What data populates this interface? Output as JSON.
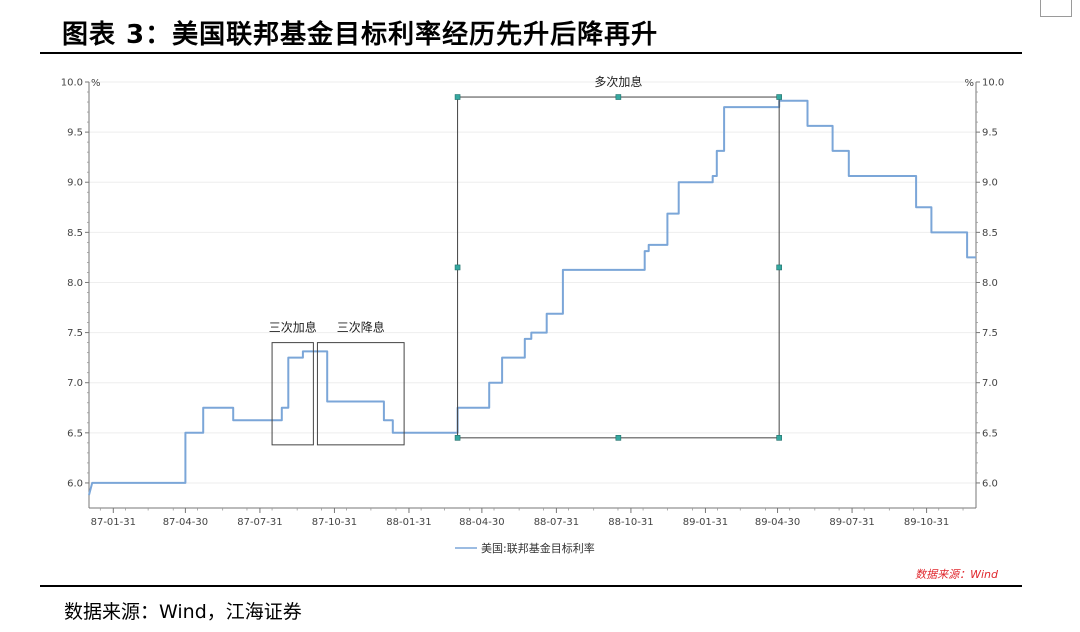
{
  "title": "图表 3：美国联邦基金目标利率经历先升后降再升",
  "source_footer": "数据来源：Wind，江海证券",
  "chart_data": {
    "type": "line",
    "ylabel_left": "%",
    "ylabel_right": "%",
    "ylim": [
      5.75,
      10.0
    ],
    "yticks": [
      "6.0",
      "6.5",
      "7.0",
      "7.5",
      "8.0",
      "8.5",
      "9.0",
      "9.5",
      "10.0"
    ],
    "xlim": [
      "1987-01-01",
      "1989-12-31"
    ],
    "xticks": [
      {
        "date": "1987-01-31",
        "label": "87-01-31"
      },
      {
        "date": "1987-04-30",
        "label": "87-04-30"
      },
      {
        "date": "1987-07-31",
        "label": "87-07-31"
      },
      {
        "date": "1987-10-31",
        "label": "87-10-31"
      },
      {
        "date": "1988-01-31",
        "label": "88-01-31"
      },
      {
        "date": "1988-04-30",
        "label": "88-04-30"
      },
      {
        "date": "1988-07-31",
        "label": "88-07-31"
      },
      {
        "date": "1988-10-31",
        "label": "88-10-31"
      },
      {
        "date": "1989-01-31",
        "label": "89-01-31"
      },
      {
        "date": "1989-04-30",
        "label": "89-04-30"
      },
      {
        "date": "1989-07-31",
        "label": "89-07-31"
      },
      {
        "date": "1989-10-31",
        "label": "89-10-31"
      }
    ],
    "series": [
      {
        "name": "美国:联邦基金目标利率",
        "color": "#7ba6d8",
        "points": [
          [
            "1987-01-01",
            5.88
          ],
          [
            "1987-01-05",
            6.0
          ],
          [
            "1987-04-30",
            6.0
          ],
          [
            "1987-04-30",
            6.5
          ],
          [
            "1987-05-22",
            6.5
          ],
          [
            "1987-05-22",
            6.75
          ],
          [
            "1987-06-28",
            6.75
          ],
          [
            "1987-06-28",
            6.625
          ],
          [
            "1987-08-27",
            6.625
          ],
          [
            "1987-08-27",
            6.75
          ],
          [
            "1987-09-04",
            6.75
          ],
          [
            "1987-09-04",
            7.25
          ],
          [
            "1987-09-22",
            7.25
          ],
          [
            "1987-09-22",
            7.3125
          ],
          [
            "1987-10-22",
            7.3125
          ],
          [
            "1987-10-22",
            6.8125
          ],
          [
            "1987-12-31",
            6.8125
          ],
          [
            "1987-12-31",
            6.625
          ],
          [
            "1988-01-11",
            6.625
          ],
          [
            "1988-01-11",
            6.5
          ],
          [
            "1988-03-31",
            6.5
          ],
          [
            "1988-03-31",
            6.75
          ],
          [
            "1988-05-09",
            6.75
          ],
          [
            "1988-05-09",
            7.0
          ],
          [
            "1988-05-25",
            7.0
          ],
          [
            "1988-05-25",
            7.25
          ],
          [
            "1988-06-22",
            7.25
          ],
          [
            "1988-06-22",
            7.4375
          ],
          [
            "1988-06-30",
            7.4375
          ],
          [
            "1988-06-30",
            7.5
          ],
          [
            "1988-07-19",
            7.5
          ],
          [
            "1988-07-19",
            7.6875
          ],
          [
            "1988-08-08",
            7.6875
          ],
          [
            "1988-08-08",
            8.125
          ],
          [
            "1988-11-17",
            8.125
          ],
          [
            "1988-11-17",
            8.3125
          ],
          [
            "1988-11-22",
            8.3125
          ],
          [
            "1988-11-22",
            8.375
          ],
          [
            "1988-12-15",
            8.375
          ],
          [
            "1988-12-15",
            8.6875
          ],
          [
            "1988-12-29",
            8.6875
          ],
          [
            "1988-12-29",
            9.0
          ],
          [
            "1989-02-09",
            9.0
          ],
          [
            "1989-02-09",
            9.0625
          ],
          [
            "1989-02-14",
            9.0625
          ],
          [
            "1989-02-14",
            9.3125
          ],
          [
            "1989-02-23",
            9.3125
          ],
          [
            "1989-02-23",
            9.75
          ],
          [
            "1989-05-02",
            9.75
          ],
          [
            "1989-05-02",
            9.8125
          ],
          [
            "1989-06-06",
            9.8125
          ],
          [
            "1989-06-06",
            9.5625
          ],
          [
            "1989-07-07",
            9.5625
          ],
          [
            "1989-07-07",
            9.3125
          ],
          [
            "1989-07-27",
            9.3125
          ],
          [
            "1989-07-27",
            9.0625
          ],
          [
            "1989-10-18",
            9.0625
          ],
          [
            "1989-10-18",
            8.75
          ],
          [
            "1989-11-06",
            8.75
          ],
          [
            "1989-11-06",
            8.5
          ],
          [
            "1989-12-20",
            8.5
          ],
          [
            "1989-12-20",
            8.25
          ],
          [
            "1989-12-31",
            8.25
          ]
        ]
      }
    ],
    "annotations": [
      {
        "label": "三次加息",
        "x_range": [
          "1987-08-15",
          "1987-10-05"
        ],
        "y_range": [
          6.38,
          7.4
        ]
      },
      {
        "label": "三次降息",
        "x_range": [
          "1987-10-10",
          "1988-01-25"
        ],
        "y_range": [
          6.38,
          7.4
        ]
      },
      {
        "label": "多次加息",
        "x_range": [
          "1988-03-31",
          "1989-05-02"
        ],
        "y_range": [
          6.45,
          9.85
        ],
        "handles": true
      }
    ],
    "legend": {
      "position": "bottom",
      "entries": [
        "美国:联邦基金目标利率"
      ]
    },
    "source_note": "数据来源：Wind",
    "grid": true
  }
}
